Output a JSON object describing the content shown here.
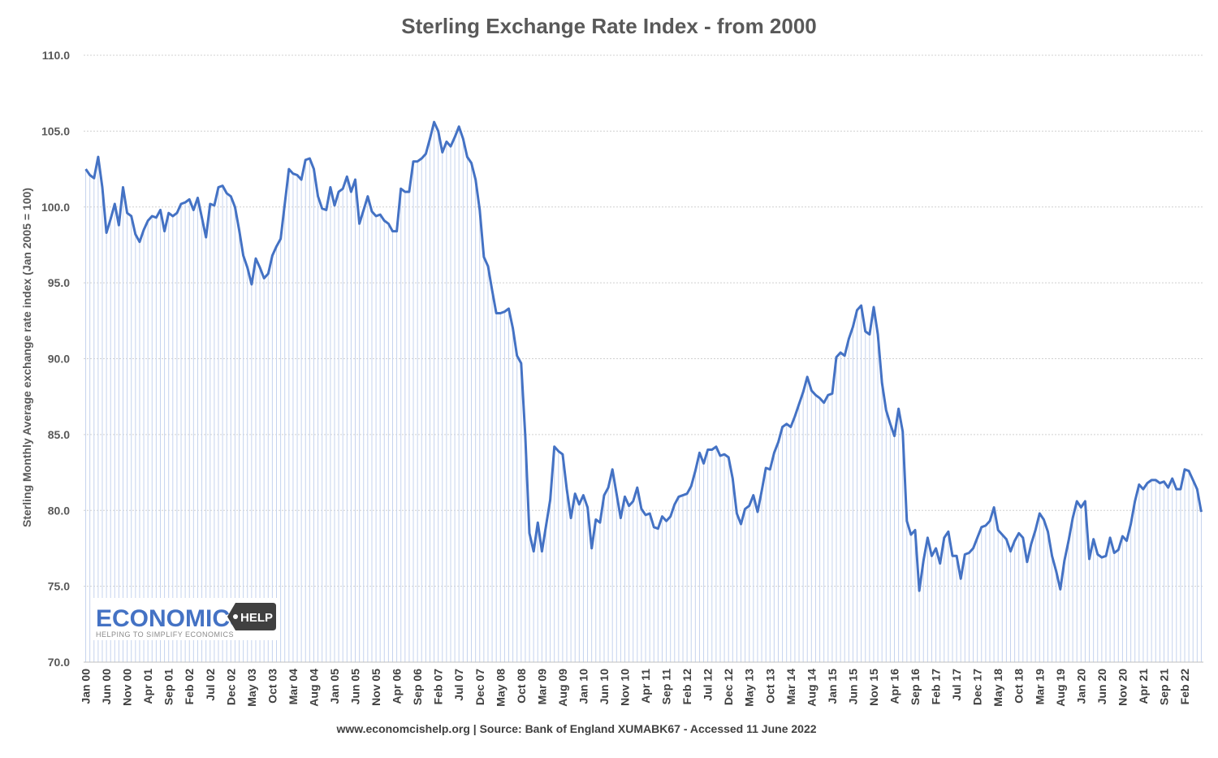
{
  "chart_data": {
    "type": "line",
    "title": "Sterling Exchange Rate Index - from 2000",
    "ylabel": "Sterling Monthly Average  exchange rate index (Jan 2005 = 100)",
    "xlabel": "",
    "source": "www.economcishelp.org | Source: Bank of England XUMABK67 - Accessed 11 June 2022",
    "ylim": [
      70,
      110
    ],
    "yticks": [
      "70.0",
      "75.0",
      "80.0",
      "85.0",
      "90.0",
      "95.0",
      "100.0",
      "105.0",
      "110.0"
    ],
    "x_start": "Jan 00",
    "x_tick_labels": [
      "Jan 00",
      "Jun 00",
      "Nov 00",
      "Apr 01",
      "Sep 01",
      "Feb 02",
      "Jul 02",
      "Dec 02",
      "May 03",
      "Oct 03",
      "Mar 04",
      "Aug 04",
      "Jan 05",
      "Jun 05",
      "Nov 05",
      "Apr 06",
      "Sep 06",
      "Feb 07",
      "Jul 07",
      "Dec 07",
      "May 08",
      "Oct 08",
      "Mar 09",
      "Aug 09",
      "Jan 10",
      "Jun 10",
      "Nov 10",
      "Apr 11",
      "Sep 11",
      "Feb 12",
      "Jul 12",
      "Dec 12",
      "May 13",
      "Oct 13",
      "Mar 14",
      "Aug 14",
      "Jan 15",
      "Jun 15",
      "Nov 15",
      "Apr 16",
      "Sep 16",
      "Feb 17",
      "Jul 17",
      "Dec 17",
      "May 18",
      "Oct 18",
      "Mar 19",
      "Aug 19",
      "Jan 20",
      "Jun 20",
      "Nov 20",
      "Apr 21",
      "Sep 21",
      "Feb 22"
    ],
    "grid": true,
    "series": [
      {
        "name": "",
        "color": "#4472c4",
        "values": [
          102.5,
          102.1,
          101.9,
          103.3,
          101.3,
          98.3,
          99.2,
          100.2,
          98.8,
          101.3,
          99.6,
          99.4,
          98.2,
          97.7,
          98.5,
          99.1,
          99.4,
          99.3,
          99.8,
          98.4,
          99.6,
          99.4,
          99.6,
          100.2,
          100.3,
          100.5,
          99.8,
          100.6,
          99.3,
          98.0,
          100.2,
          100.1,
          101.3,
          101.4,
          100.9,
          100.7,
          100.0,
          98.5,
          96.8,
          96.0,
          94.9,
          96.6,
          96.0,
          95.3,
          95.6,
          96.8,
          97.4,
          97.9,
          100.2,
          102.5,
          102.2,
          102.1,
          101.8,
          103.1,
          103.2,
          102.5,
          100.7,
          99.9,
          99.8,
          101.3,
          100.1,
          101.0,
          101.2,
          102.0,
          101.0,
          101.8,
          98.9,
          99.8,
          100.7,
          99.7,
          99.4,
          99.5,
          99.1,
          98.9,
          98.4,
          98.4,
          101.2,
          101.0,
          101.0,
          103.0,
          103.0,
          103.2,
          103.5,
          104.5,
          105.6,
          105.0,
          103.6,
          104.3,
          104.0,
          104.6,
          105.3,
          104.5,
          103.3,
          102.9,
          101.8,
          99.8,
          96.7,
          96.1,
          94.5,
          93.0,
          93.0,
          93.1,
          93.3,
          92.0,
          90.2,
          89.7,
          84.9,
          78.5,
          77.3,
          79.2,
          77.3,
          79.0,
          80.7,
          84.2,
          83.9,
          83.7,
          81.4,
          79.5,
          81.1,
          80.4,
          81.0,
          80.2,
          77.5,
          79.4,
          79.2,
          81.0,
          81.5,
          82.7,
          81.1,
          79.5,
          80.9,
          80.3,
          80.6,
          81.5,
          80.1,
          79.7,
          79.8,
          78.9,
          78.8,
          79.6,
          79.3,
          79.6,
          80.4,
          80.9,
          81.0,
          81.1,
          81.6,
          82.6,
          83.8,
          83.1,
          84.0,
          84.0,
          84.2,
          83.6,
          83.7,
          83.5,
          82.1,
          79.8,
          79.1,
          80.1,
          80.3,
          81.0,
          79.9,
          81.3,
          82.8,
          82.7,
          83.8,
          84.5,
          85.5,
          85.7,
          85.5,
          86.2,
          87.0,
          87.8,
          88.8,
          87.9,
          87.6,
          87.4,
          87.1,
          87.6,
          87.7,
          90.1,
          90.4,
          90.2,
          91.3,
          92.1,
          93.2,
          93.5,
          91.8,
          91.6,
          93.4,
          91.6,
          88.4,
          86.6,
          85.7,
          84.9,
          86.7,
          85.2,
          79.3,
          78.4,
          78.7,
          74.7,
          76.7,
          78.2,
          77.0,
          77.5,
          76.5,
          78.2,
          78.6,
          77.0,
          77.0,
          75.5,
          77.1,
          77.2,
          77.5,
          78.2,
          78.9,
          79.0,
          79.3,
          80.2,
          78.7,
          78.4,
          78.1,
          77.3,
          78.0,
          78.5,
          78.2,
          76.6,
          77.8,
          78.7,
          79.8,
          79.4,
          78.6,
          77.0,
          76.0,
          74.8,
          76.7,
          78.0,
          79.5,
          80.6,
          80.2,
          80.6,
          76.8,
          78.1,
          77.1,
          76.9,
          77.0,
          78.2,
          77.2,
          77.4,
          78.3,
          78.0,
          79.1,
          80.6,
          81.7,
          81.4,
          81.8,
          82.0,
          82.0,
          81.8,
          81.9,
          81.5,
          82.1,
          81.4,
          81.4,
          82.7,
          82.6,
          82.0,
          81.4,
          79.9
        ]
      }
    ]
  },
  "logo": {
    "name": "ECONOMICS",
    "badge": "HELP",
    "tagline": "HELPING TO SIMPLIFY ECONOMICS",
    "color": "#4472c4",
    "badge_color": "#404040"
  }
}
